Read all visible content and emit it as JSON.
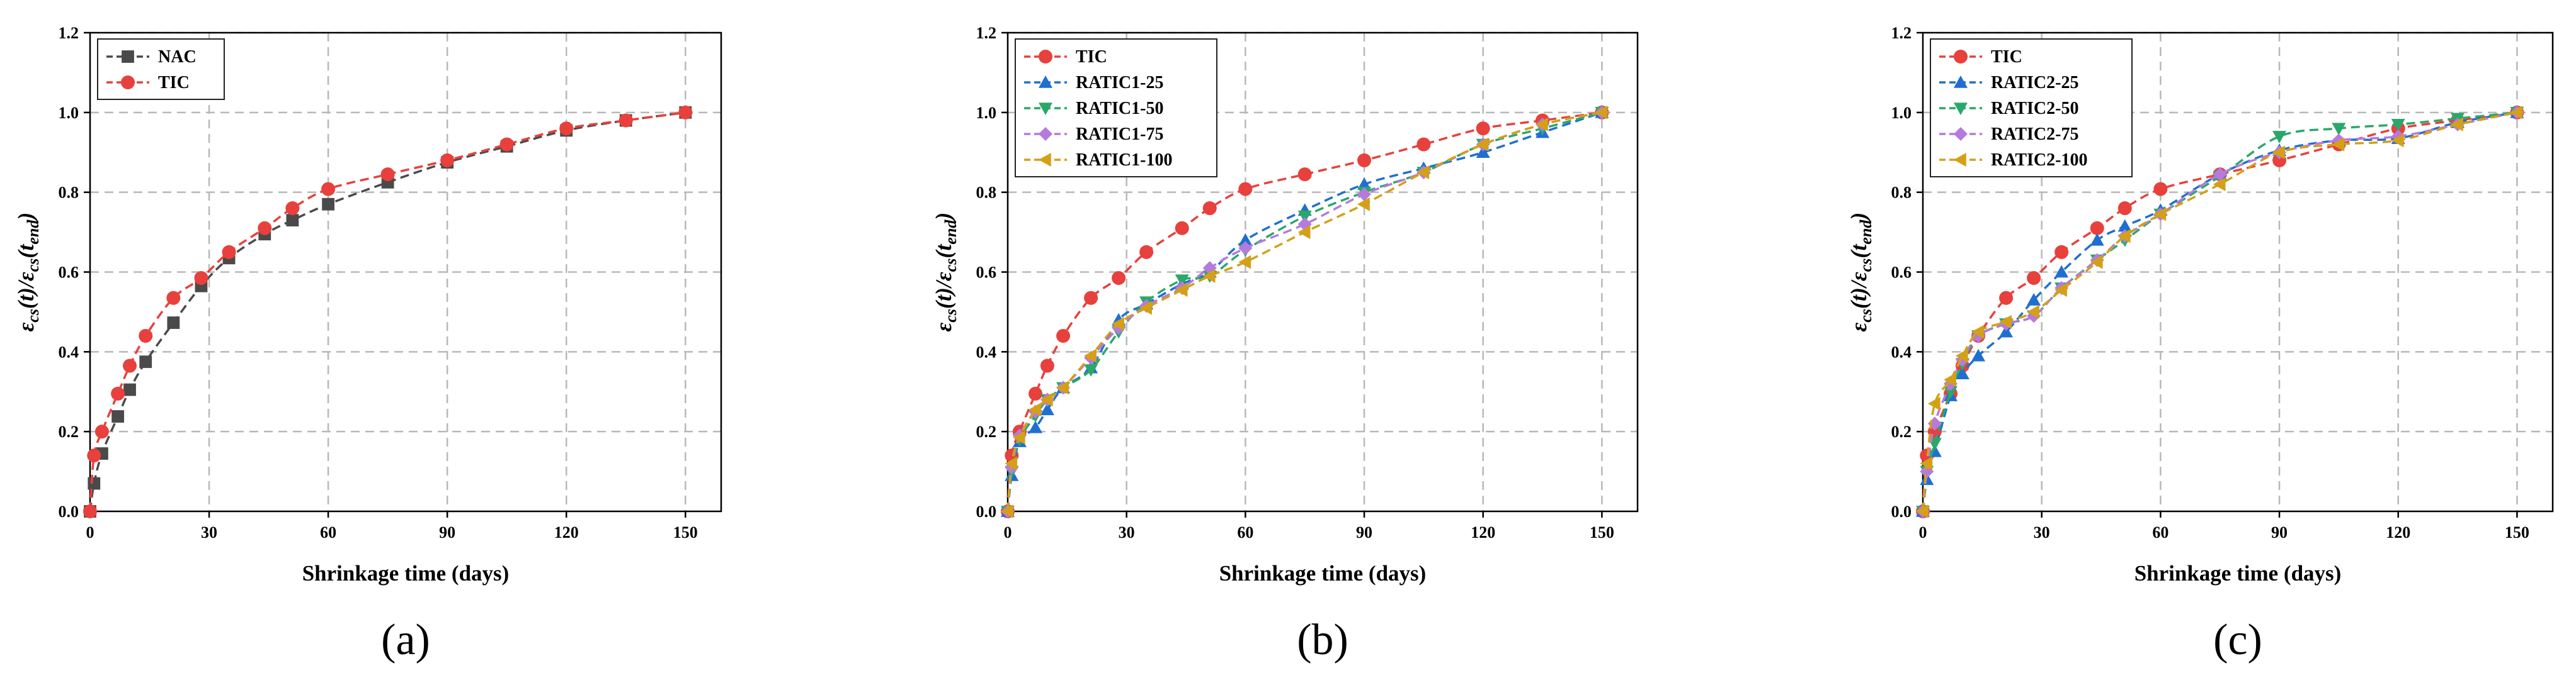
{
  "colors": {
    "NAC": "#4a4a4a",
    "TIC": "#e8403c",
    "RATIC-25": "#1f6fd1",
    "RATIC-50": "#2aa86a",
    "RATIC-75": "#b57bdc",
    "RATIC-100": "#d4a017",
    "grid": "#b8b8b8"
  },
  "chart_data": [
    {
      "type": "line",
      "panel_label": "(a)",
      "xlabel": "Shrinkage time (days)",
      "ylabel": {
        "base": "ε",
        "sub1": "cs",
        "mid": "(t)/ε",
        "sub2": "cs",
        "tail_open": "(t",
        "sub3": "end",
        "tail_close": ")"
      },
      "xlim": [
        0,
        159
      ],
      "ylim": [
        0,
        1.2
      ],
      "xticks": [
        0,
        30,
        60,
        90,
        120,
        150
      ],
      "yticks": [
        0.0,
        0.2,
        0.4,
        0.6,
        0.8,
        1.0,
        1.2
      ],
      "xtick_labels": [
        "0",
        "30",
        "60",
        "90",
        "120",
        "150"
      ],
      "ytick_labels": [
        "0.0",
        "0.2",
        "0.4",
        "0.6",
        "0.8",
        "1.0",
        "1.2"
      ],
      "legend_position": "top-left",
      "series": [
        {
          "name": "NAC",
          "marker": "square",
          "color": "#4a4a4a",
          "x": [
            0,
            1,
            3,
            7,
            10,
            14,
            21,
            28,
            35,
            44,
            51,
            60,
            75,
            90,
            105,
            120,
            135,
            150
          ],
          "y": [
            0.0,
            0.07,
            0.145,
            0.238,
            0.305,
            0.375,
            0.473,
            0.565,
            0.635,
            0.695,
            0.73,
            0.77,
            0.825,
            0.875,
            0.915,
            0.955,
            0.98,
            1.0
          ]
        },
        {
          "name": "TIC",
          "marker": "circle",
          "color": "#e8403c",
          "x": [
            0,
            1,
            3,
            7,
            10,
            14,
            21,
            28,
            35,
            44,
            51,
            60,
            75,
            90,
            105,
            120,
            135,
            150
          ],
          "y": [
            0.0,
            0.14,
            0.2,
            0.295,
            0.365,
            0.44,
            0.535,
            0.585,
            0.65,
            0.71,
            0.76,
            0.808,
            0.845,
            0.88,
            0.92,
            0.96,
            0.98,
            1.0
          ]
        }
      ]
    },
    {
      "type": "line",
      "panel_label": "(b)",
      "xlabel": "Shrinkage time (days)",
      "ylabel": {
        "base": "ε",
        "sub1": "cs",
        "mid": "(t)/ε",
        "sub2": "cs",
        "tail_open": "(t",
        "sub3": "end",
        "tail_close": ")"
      },
      "xlim": [
        0,
        159
      ],
      "ylim": [
        0,
        1.2
      ],
      "xticks": [
        0,
        30,
        60,
        90,
        120,
        150
      ],
      "yticks": [
        0.0,
        0.2,
        0.4,
        0.6,
        0.8,
        1.0,
        1.2
      ],
      "xtick_labels": [
        "0",
        "30",
        "60",
        "90",
        "120",
        "150"
      ],
      "ytick_labels": [
        "0.0",
        "0.2",
        "0.4",
        "0.6",
        "0.8",
        "1.0",
        "1.2"
      ],
      "legend_position": "top-left",
      "series": [
        {
          "name": "TIC",
          "marker": "circle",
          "color": "#e8403c",
          "x": [
            0,
            1,
            3,
            7,
            10,
            14,
            21,
            28,
            35,
            44,
            51,
            60,
            75,
            90,
            105,
            120,
            135,
            150
          ],
          "y": [
            0.0,
            0.14,
            0.2,
            0.295,
            0.365,
            0.44,
            0.535,
            0.585,
            0.65,
            0.71,
            0.76,
            0.808,
            0.845,
            0.88,
            0.92,
            0.96,
            0.98,
            1.0
          ]
        },
        {
          "name": "RATIC1-25",
          "marker": "triangle-up",
          "color": "#1f6fd1",
          "x": [
            0,
            1,
            3,
            7,
            10,
            14,
            21,
            28,
            35,
            44,
            51,
            60,
            75,
            90,
            105,
            120,
            135,
            150
          ],
          "y": [
            0.0,
            0.09,
            0.175,
            0.21,
            0.255,
            0.31,
            0.36,
            0.48,
            0.52,
            0.57,
            0.6,
            0.68,
            0.755,
            0.82,
            0.86,
            0.9,
            0.95,
            1.0
          ]
        },
        {
          "name": "RATIC1-50",
          "marker": "triangle-down",
          "color": "#2aa86a",
          "x": [
            0,
            1,
            3,
            7,
            10,
            14,
            21,
            28,
            35,
            44,
            51,
            60,
            75,
            90,
            105,
            120,
            135,
            150
          ],
          "y": [
            0.0,
            0.1,
            0.18,
            0.24,
            0.28,
            0.31,
            0.355,
            0.45,
            0.525,
            0.58,
            0.59,
            0.655,
            0.74,
            0.8,
            0.85,
            0.92,
            0.96,
            1.0
          ]
        },
        {
          "name": "RATIC1-75",
          "marker": "diamond",
          "color": "#b57bdc",
          "x": [
            0,
            1,
            3,
            7,
            10,
            14,
            21,
            28,
            35,
            44,
            51,
            60,
            75,
            90,
            105,
            120,
            135,
            150
          ],
          "y": [
            0.0,
            0.11,
            0.19,
            0.25,
            0.28,
            0.31,
            0.385,
            0.46,
            0.515,
            0.56,
            0.61,
            0.66,
            0.72,
            0.795,
            0.85,
            0.92,
            0.97,
            1.0
          ]
        },
        {
          "name": "RATIC1-100",
          "marker": "triangle-left",
          "color": "#d4a017",
          "x": [
            0,
            1,
            3,
            7,
            10,
            14,
            21,
            28,
            35,
            44,
            51,
            60,
            75,
            90,
            105,
            120,
            135,
            150
          ],
          "y": [
            0.0,
            0.12,
            0.185,
            0.255,
            0.28,
            0.31,
            0.39,
            0.47,
            0.51,
            0.555,
            0.59,
            0.625,
            0.7,
            0.77,
            0.85,
            0.92,
            0.97,
            1.0
          ]
        }
      ]
    },
    {
      "type": "line",
      "panel_label": "(c)",
      "xlabel": "Shrinkage time (days)",
      "ylabel": {
        "base": "ε",
        "sub1": "cs",
        "mid": "(t)/ε",
        "sub2": "cs",
        "tail_open": "(t",
        "sub3": "end",
        "tail_close": ")"
      },
      "xlim": [
        0,
        159
      ],
      "ylim": [
        0,
        1.2
      ],
      "xticks": [
        0,
        30,
        60,
        90,
        120,
        150
      ],
      "yticks": [
        0.0,
        0.2,
        0.4,
        0.6,
        0.8,
        1.0,
        1.2
      ],
      "xtick_labels": [
        "0",
        "30",
        "60",
        "90",
        "120",
        "150"
      ],
      "ytick_labels": [
        "0.0",
        "0.2",
        "0.4",
        "0.6",
        "0.8",
        "1.0",
        "1.2"
      ],
      "legend_position": "top-left",
      "series": [
        {
          "name": "TIC",
          "marker": "circle",
          "color": "#e8403c",
          "x": [
            0,
            1,
            3,
            7,
            10,
            14,
            21,
            28,
            35,
            44,
            51,
            60,
            75,
            90,
            105,
            120,
            135,
            150
          ],
          "y": [
            0.0,
            0.14,
            0.2,
            0.295,
            0.365,
            0.44,
            0.535,
            0.585,
            0.65,
            0.71,
            0.76,
            0.808,
            0.845,
            0.88,
            0.92,
            0.96,
            0.98,
            1.0
          ]
        },
        {
          "name": "RATIC2-25",
          "marker": "triangle-up",
          "color": "#1f6fd1",
          "x": [
            0,
            1,
            3,
            7,
            10,
            14,
            21,
            28,
            35,
            44,
            51,
            60,
            75,
            90,
            105,
            120,
            135,
            150
          ],
          "y": [
            0.0,
            0.08,
            0.15,
            0.29,
            0.345,
            0.39,
            0.45,
            0.53,
            0.6,
            0.68,
            0.715,
            0.755,
            0.845,
            0.905,
            0.93,
            0.935,
            0.975,
            1.0
          ]
        },
        {
          "name": "RATIC2-50",
          "marker": "triangle-down",
          "color": "#2aa86a",
          "x": [
            0,
            1,
            3,
            7,
            10,
            14,
            21,
            28,
            35,
            44,
            51,
            60,
            75,
            90,
            105,
            120,
            135,
            150
          ],
          "y": [
            0.0,
            0.1,
            0.17,
            0.3,
            0.37,
            0.44,
            0.47,
            0.49,
            0.56,
            0.63,
            0.68,
            0.745,
            0.84,
            0.94,
            0.96,
            0.97,
            0.985,
            1.0
          ]
        },
        {
          "name": "RATIC2-75",
          "marker": "diamond",
          "color": "#b57bdc",
          "x": [
            0,
            1,
            3,
            7,
            10,
            14,
            21,
            28,
            35,
            44,
            51,
            60,
            75,
            90,
            105,
            120,
            135,
            150
          ],
          "y": [
            0.0,
            0.1,
            0.22,
            0.32,
            0.38,
            0.44,
            0.47,
            0.49,
            0.56,
            0.63,
            0.69,
            0.745,
            0.845,
            0.9,
            0.93,
            0.94,
            0.97,
            1.0
          ]
        },
        {
          "name": "RATIC2-100",
          "marker": "triangle-left",
          "color": "#d4a017",
          "x": [
            0,
            1,
            3,
            7,
            10,
            14,
            21,
            28,
            35,
            44,
            51,
            60,
            75,
            90,
            105,
            120,
            135,
            150
          ],
          "y": [
            0.0,
            0.12,
            0.27,
            0.33,
            0.39,
            0.45,
            0.475,
            0.5,
            0.555,
            0.625,
            0.69,
            0.745,
            0.82,
            0.9,
            0.92,
            0.93,
            0.97,
            1.0
          ]
        }
      ]
    }
  ]
}
